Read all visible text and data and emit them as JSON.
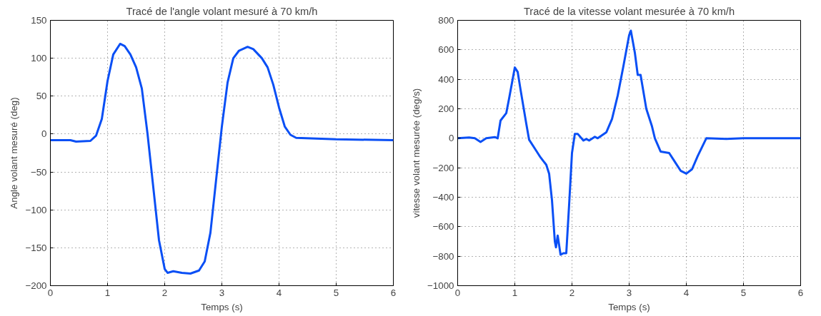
{
  "chart_data": [
    {
      "type": "line",
      "title": "Tracé de l'angle volant mesuré à 70 km/h",
      "xlabel": "Temps (s)",
      "ylabel": "Angle volant mesuré (deg)",
      "grid": true,
      "line_style": "solid",
      "xlim": [
        0,
        6
      ],
      "xticks": [
        0,
        1,
        2,
        3,
        4,
        5,
        6
      ],
      "ylim": [
        -200,
        150
      ],
      "yticks": [
        -200,
        -150,
        -100,
        -50,
        0,
        50,
        100,
        150
      ],
      "x": [
        0,
        0.35,
        0.45,
        0.7,
        0.8,
        0.9,
        1.0,
        1.1,
        1.22,
        1.3,
        1.4,
        1.5,
        1.6,
        1.7,
        1.8,
        1.9,
        2.0,
        2.05,
        2.15,
        2.3,
        2.45,
        2.6,
        2.7,
        2.8,
        2.9,
        3.0,
        3.1,
        3.2,
        3.3,
        3.45,
        3.55,
        3.7,
        3.8,
        3.9,
        4.0,
        4.1,
        4.2,
        4.3,
        5.0,
        6.0
      ],
      "series": [
        {
          "color": "#0a4ff5",
          "values": [
            -8,
            -8,
            -10,
            -9,
            -2,
            20,
            70,
            105,
            119,
            116,
            105,
            88,
            60,
            0,
            -70,
            -140,
            -178,
            -183,
            -181,
            -183,
            -184,
            -180,
            -168,
            -130,
            -60,
            10,
            68,
            100,
            110,
            115,
            112,
            100,
            88,
            65,
            35,
            10,
            -1,
            -5,
            -7,
            -8
          ]
        }
      ]
    },
    {
      "type": "line",
      "title": "Tracé de la vitesse volant mesurée à 70 km/h",
      "xlabel": "Temps (s)",
      "ylabel": "vitesse volant mesurée (deg/s)",
      "grid": true,
      "line_style": "solid",
      "xlim": [
        0,
        6
      ],
      "xticks": [
        0,
        1,
        2,
        3,
        4,
        5,
        6
      ],
      "ylim": [
        -1000,
        800
      ],
      "yticks": [
        -1000,
        -800,
        -600,
        -400,
        -200,
        0,
        200,
        400,
        600,
        800
      ],
      "x": [
        0,
        0.2,
        0.3,
        0.4,
        0.5,
        0.65,
        0.7,
        0.75,
        0.85,
        0.9,
        1.0,
        1.05,
        1.1,
        1.2,
        1.25,
        1.35,
        1.45,
        1.55,
        1.6,
        1.65,
        1.7,
        1.72,
        1.75,
        1.8,
        1.85,
        1.9,
        1.95,
        2.0,
        2.05,
        2.1,
        2.2,
        2.25,
        2.3,
        2.4,
        2.45,
        2.6,
        2.7,
        2.8,
        2.9,
        3.0,
        3.03,
        3.1,
        3.15,
        3.2,
        3.3,
        3.4,
        3.45,
        3.55,
        3.7,
        3.8,
        3.9,
        4.0,
        4.1,
        4.2,
        4.35,
        4.7,
        5.0,
        6.0
      ],
      "series": [
        {
          "color": "#0a4ff5",
          "values": [
            0,
            5,
            0,
            -25,
            0,
            8,
            0,
            120,
            170,
            270,
            480,
            450,
            330,
            100,
            -10,
            -70,
            -130,
            -180,
            -240,
            -420,
            -700,
            -740,
            -660,
            -790,
            -780,
            -780,
            -450,
            -100,
            30,
            30,
            -15,
            -5,
            -15,
            10,
            0,
            40,
            130,
            290,
            490,
            700,
            730,
            580,
            430,
            430,
            200,
            80,
            0,
            -90,
            -100,
            -160,
            -220,
            -240,
            -210,
            -120,
            0,
            -5,
            0,
            0
          ]
        }
      ]
    }
  ]
}
